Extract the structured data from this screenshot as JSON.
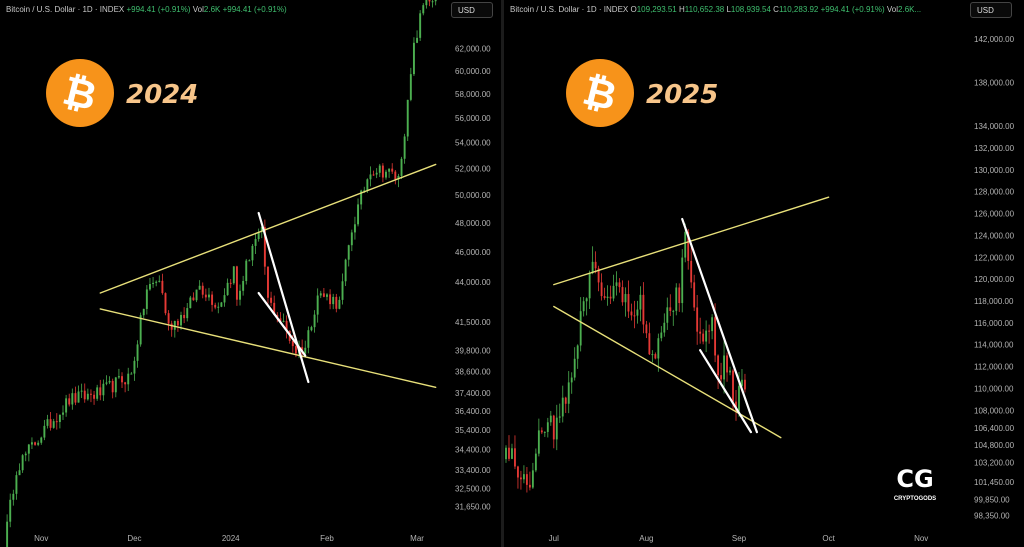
{
  "colors": {
    "up": "#4caf50",
    "down": "#e53935",
    "trendline": "#e8e07a",
    "wedge": "#ffffff",
    "bitcoin_orange": "#f7931a"
  },
  "watermark": {
    "text": "CRYPTOGODS",
    "logo": "CG"
  },
  "chart_data": [
    {
      "type": "candlestick",
      "symbol_header": {
        "name": "Bitcoin / U.S. Dollar · 1D · INDEX",
        "change": "+994.41 (+0.91%)",
        "vol_label": "Vol",
        "vol_value": "2.6K",
        "vol_change": "+994.41 (+0.91%)"
      },
      "currency": "USD",
      "year_label": "2024",
      "icon": "bitcoin-icon",
      "y_scale": "log",
      "ylim": [
        30800,
        66000
      ],
      "y_ticks": [
        "62,000.00",
        "60,000.00",
        "58,000.00",
        "56,000.00",
        "54,000.00",
        "52,000.00",
        "50,000.00",
        "48,000.00",
        "46,000.00",
        "44,000.00",
        "41,500.00",
        "39,800.00",
        "38,600.00",
        "37,400.00",
        "36,400.00",
        "35,400.00",
        "34,400.00",
        "33,400.00",
        "32,500.00",
        "31,650.00"
      ],
      "x_ticks": [
        "Nov",
        "Dec",
        "2024",
        "Feb",
        "Mar"
      ],
      "x_tick_dates": [
        "2023-11-01",
        "2023-12-01",
        "2024-01-01",
        "2024-02-01",
        "2024-03-01"
      ],
      "x_start": "2023-10-20",
      "x_end": "2024-03-10",
      "price_anchors": [
        [
          "2023-10-20",
          29800
        ],
        [
          "2023-10-24",
          33500
        ],
        [
          "2023-11-01",
          35200
        ],
        [
          "2023-11-10",
          37000
        ],
        [
          "2023-11-20",
          37400
        ],
        [
          "2023-11-30",
          38400
        ],
        [
          "2023-12-05",
          43500
        ],
        [
          "2023-12-09",
          44200
        ],
        [
          "2023-12-12",
          41200
        ],
        [
          "2023-12-18",
          42200
        ],
        [
          "2023-12-22",
          43800
        ],
        [
          "2023-12-28",
          42500
        ],
        [
          "2024-01-02",
          44800
        ],
        [
          "2024-01-03",
          42800
        ],
        [
          "2024-01-08",
          46500
        ],
        [
          "2024-01-11",
          47200
        ],
        [
          "2024-01-13",
          42800
        ],
        [
          "2024-01-18",
          41300
        ],
        [
          "2024-01-22",
          39800
        ],
        [
          "2024-01-25",
          40000
        ],
        [
          "2024-01-29",
          43200
        ],
        [
          "2024-02-02",
          43000
        ],
        [
          "2024-02-05",
          42600
        ],
        [
          "2024-02-09",
          47500
        ],
        [
          "2024-02-12",
          49800
        ],
        [
          "2024-02-15",
          52000
        ],
        [
          "2024-02-20",
          51800
        ],
        [
          "2024-02-24",
          51200
        ],
        [
          "2024-02-27",
          57000
        ],
        [
          "2024-02-29",
          62000
        ],
        [
          "2024-03-04",
          67500
        ],
        [
          "2024-03-06",
          66000
        ],
        [
          "2024-03-09",
          68500
        ]
      ],
      "trendlines": [
        {
          "name": "upper-channel",
          "style": "yellow",
          "from": [
            "2023-11-20",
            43300
          ],
          "to": [
            "2024-03-07",
            52300
          ]
        },
        {
          "name": "lower-channel",
          "style": "yellow",
          "from": [
            "2023-11-20",
            42300
          ],
          "to": [
            "2024-03-07",
            37700
          ]
        },
        {
          "name": "wedge-upper",
          "style": "white",
          "from": [
            "2024-01-10",
            48700
          ],
          "to": [
            "2024-01-26",
            38000
          ]
        },
        {
          "name": "wedge-lower",
          "style": "white",
          "from": [
            "2024-01-10",
            43300
          ],
          "to": [
            "2024-01-25",
            39500
          ]
        }
      ]
    },
    {
      "type": "candlestick",
      "symbol_header": {
        "name": "Bitcoin / U.S. Dollar · 1D · INDEX",
        "ohlc": [
          {
            "k": "O",
            "v": "109,293.51"
          },
          {
            "k": "H",
            "v": "110,652.38"
          },
          {
            "k": "L",
            "v": "108,939.54"
          },
          {
            "k": "C",
            "v": "110,283.92"
          }
        ],
        "change": "+994.41 (+0.91%)",
        "vol_label": "Vol",
        "vol_value": "2.6K..."
      },
      "currency": "USD",
      "year_label": "2025",
      "icon": "bitcoin-icon",
      "y_scale": "linear",
      "ylim": [
        97500,
        145000
      ],
      "y_ticks": [
        "142,000.00",
        "138,000.00",
        "134,000.00",
        "132,000.00",
        "130,000.00",
        "128,000.00",
        "126,000.00",
        "124,000.00",
        "122,000.00",
        "120,000.00",
        "118,000.00",
        "116,000.00",
        "114,000.00",
        "112,000.00",
        "110,000.00",
        "108,000.00",
        "106,400.00",
        "104,800.00",
        "103,200.00",
        "101,450.00",
        "99,850.00",
        "98,350.00"
      ],
      "x_ticks": [
        "Jul",
        "Aug",
        "Sep",
        "Oct",
        "Nov"
      ],
      "x_tick_dates": [
        "2025-07-01",
        "2025-08-01",
        "2025-09-01",
        "2025-10-01",
        "2025-11-01"
      ],
      "x_start": "2025-06-15",
      "x_end": "2025-11-16",
      "price_anchors": [
        [
          "2025-06-15",
          104500
        ],
        [
          "2025-06-18",
          103500
        ],
        [
          "2025-06-22",
          100500
        ],
        [
          "2025-06-27",
          107000
        ],
        [
          "2025-07-01",
          106500
        ],
        [
          "2025-07-05",
          108500
        ],
        [
          "2025-07-10",
          116500
        ],
        [
          "2025-07-14",
          121500
        ],
        [
          "2025-07-18",
          118500
        ],
        [
          "2025-07-22",
          119800
        ],
        [
          "2025-07-26",
          117500
        ],
        [
          "2025-07-30",
          118000
        ],
        [
          "2025-08-02",
          113000
        ],
        [
          "2025-08-06",
          114500
        ],
        [
          "2025-08-09",
          117500
        ],
        [
          "2025-08-12",
          119000
        ],
        [
          "2025-08-14",
          123500
        ],
        [
          "2025-08-17",
          117500
        ],
        [
          "2025-08-20",
          113500
        ],
        [
          "2025-08-23",
          115500
        ],
        [
          "2025-08-25",
          110500
        ],
        [
          "2025-08-28",
          112500
        ],
        [
          "2025-08-31",
          108500
        ],
        [
          "2025-09-03",
          110283
        ]
      ],
      "trendlines": [
        {
          "name": "upper-channel",
          "style": "yellow",
          "from": [
            "2025-07-01",
            119500
          ],
          "to": [
            "2025-10-01",
            127500
          ]
        },
        {
          "name": "lower-channel",
          "style": "yellow",
          "from": [
            "2025-07-01",
            117500
          ],
          "to": [
            "2025-09-15",
            105500
          ]
        },
        {
          "name": "wedge-upper",
          "style": "white",
          "from": [
            "2025-08-13",
            125500
          ],
          "to": [
            "2025-09-07",
            106000
          ]
        },
        {
          "name": "wedge-lower",
          "style": "white",
          "from": [
            "2025-08-19",
            113500
          ],
          "to": [
            "2025-09-05",
            106000
          ]
        }
      ]
    }
  ]
}
